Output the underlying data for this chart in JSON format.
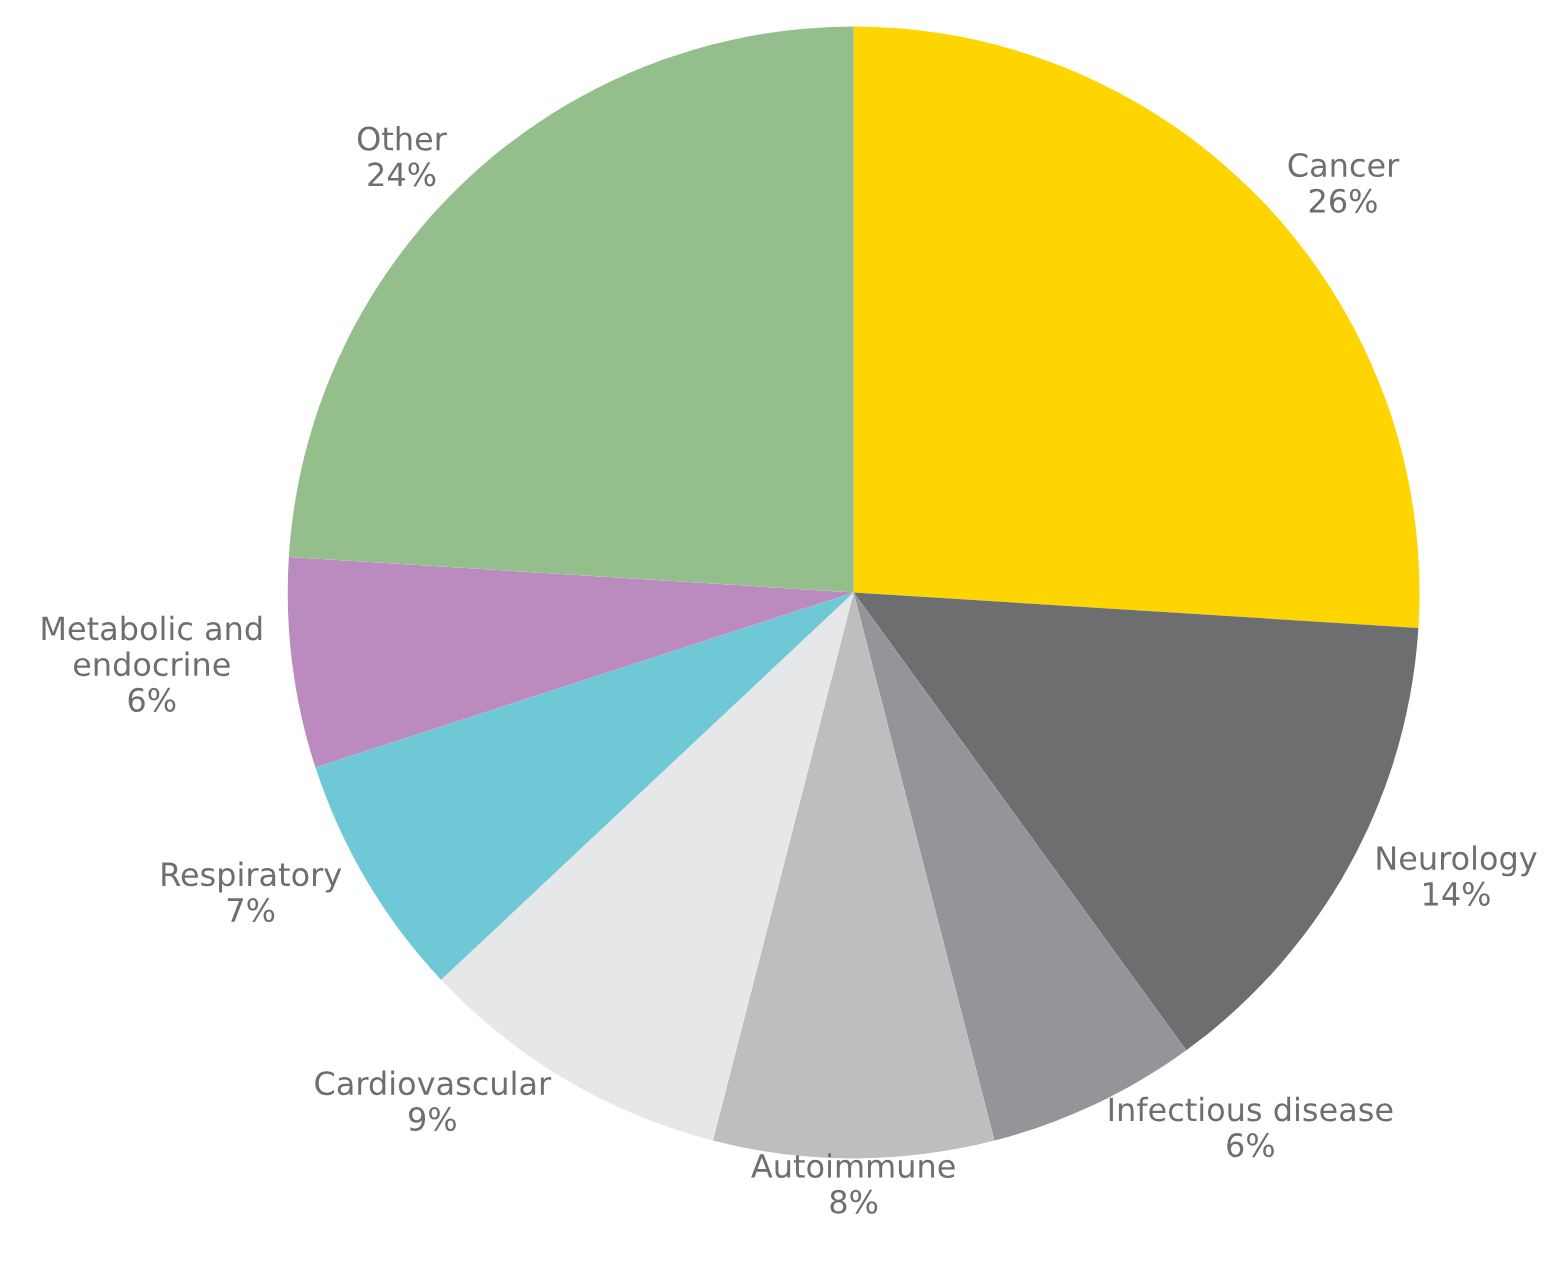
{
  "chart_data": {
    "type": "pie",
    "categories": [
      "Cancer",
      "Neurology",
      "Infectious disease",
      "Autoimmune",
      "Cardiovascular",
      "Respiratory",
      "Metabolic and\nendocrine",
      "Other"
    ],
    "values": [
      26,
      14,
      6,
      8,
      9,
      7,
      6,
      24
    ],
    "value_labels": [
      "26%",
      "14%",
      "6%",
      "8%",
      "9%",
      "7%",
      "6%",
      "24%"
    ],
    "colors": [
      "#ffd500",
      "#6d6e70",
      "#939598",
      "#bcbec0",
      "#e6e7e8",
      "#6fc8d6",
      "#bb8bbf",
      "#94bf8c"
    ],
    "legend": false
  }
}
